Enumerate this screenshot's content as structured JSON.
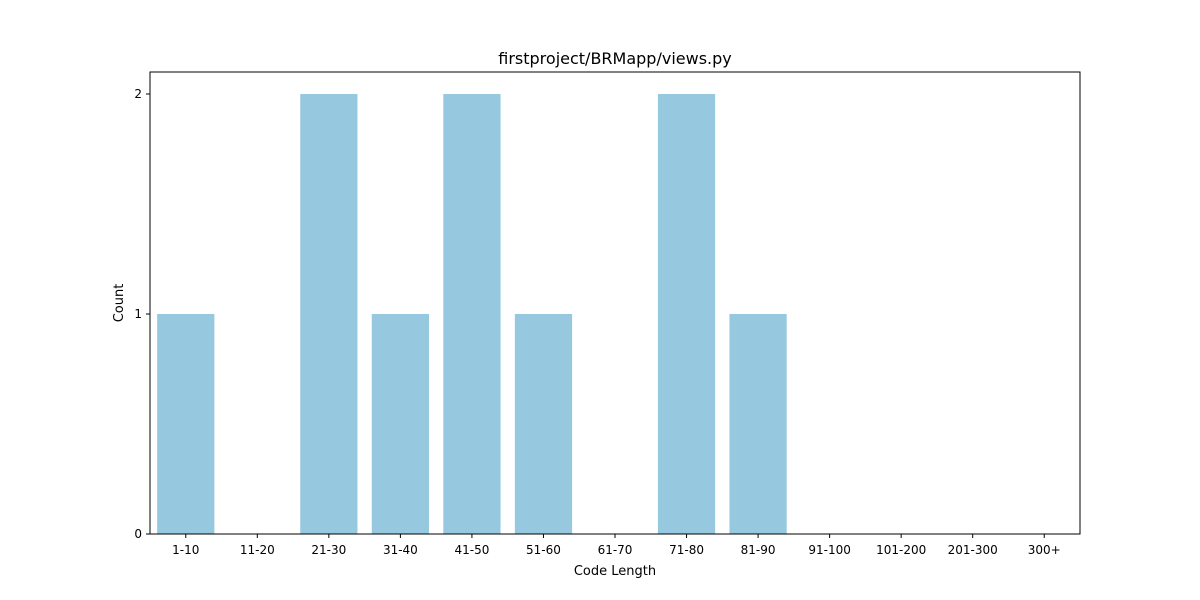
{
  "chart_data": {
    "type": "bar",
    "title": "firstproject/BRMapp/views.py",
    "xlabel": "Code Length",
    "ylabel": "Count",
    "categories": [
      "1-10",
      "11-20",
      "21-30",
      "31-40",
      "41-50",
      "51-60",
      "61-70",
      "71-80",
      "81-90",
      "91-100",
      "101-200",
      "201-300",
      "300+"
    ],
    "values": [
      1,
      0,
      2,
      1,
      2,
      1,
      0,
      2,
      1,
      0,
      0,
      0,
      0
    ],
    "ylim": [
      0,
      2.1
    ],
    "yticks": [
      0,
      1,
      2
    ],
    "bar_color": "#96c9df",
    "grid": false,
    "legend": "none"
  }
}
